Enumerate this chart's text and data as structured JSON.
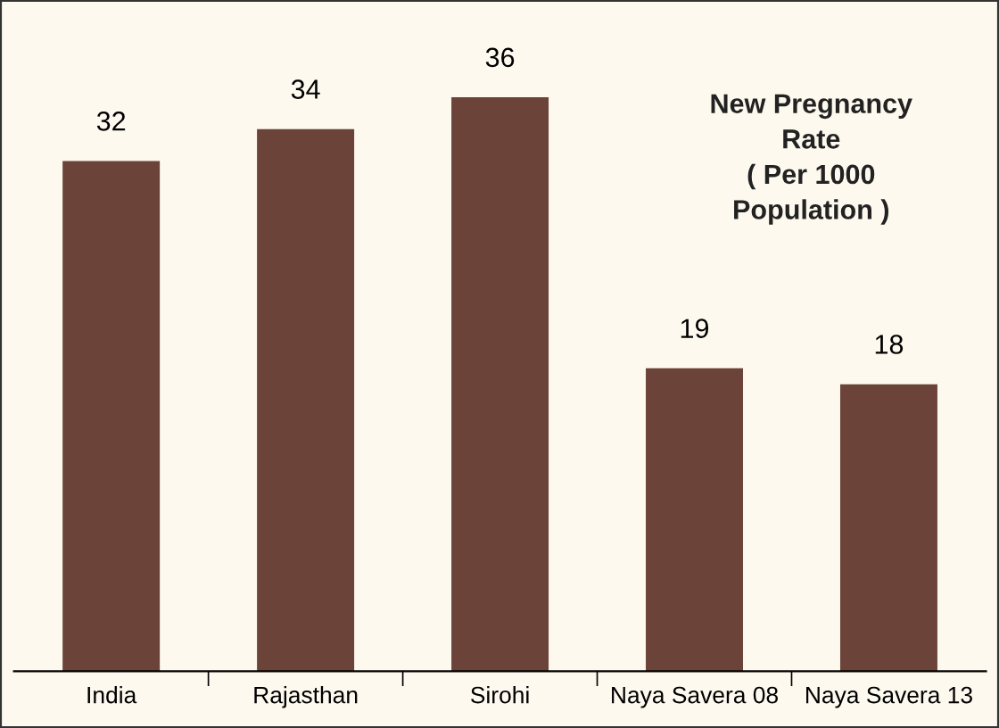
{
  "chart_data": {
    "type": "bar",
    "title": "New Pregnancy\nRate\n( Per 1000\nPopulation )",
    "categories": [
      "India",
      "Rajasthan",
      "Sirohi",
      "Naya Savera 08",
      "Naya Savera 13"
    ],
    "values": [
      32,
      34,
      36,
      19,
      18
    ],
    "color": "#6b4339",
    "data_labels": true,
    "grid": false,
    "legend": false
  }
}
